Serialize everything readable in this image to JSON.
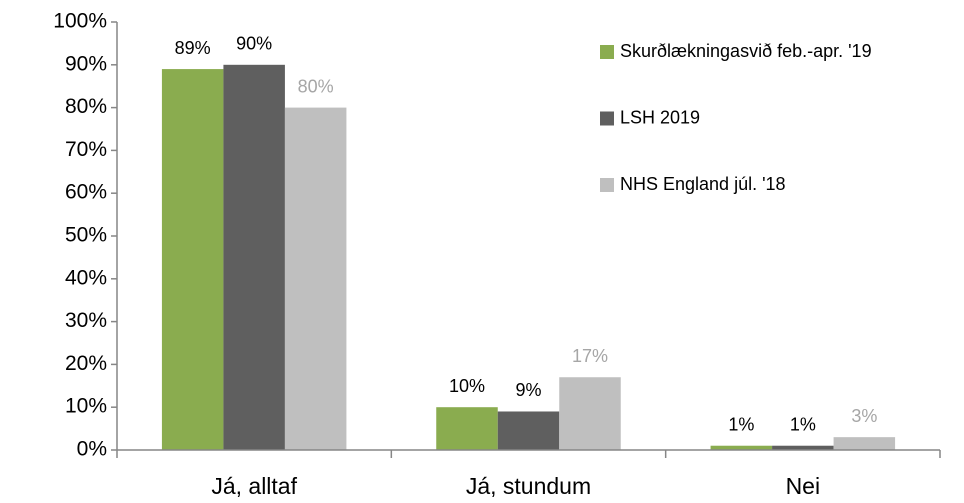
{
  "chart_data": {
    "type": "bar",
    "categories": [
      "Já, alltaf",
      "Já, stundum",
      "Nei"
    ],
    "series": [
      {
        "name": "Skurðlækningasvið feb.-apr. '19",
        "color": "#8aac4f",
        "label_color": "#000000",
        "values": [
          89,
          10,
          1
        ],
        "value_labels": [
          "89%",
          "10%",
          "1%"
        ]
      },
      {
        "name": "LSH 2019",
        "color": "#5f5f5f",
        "label_color": "#000000",
        "values": [
          90,
          9,
          1
        ],
        "value_labels": [
          "90%",
          "9%",
          "1%"
        ]
      },
      {
        "name": "NHS England júl. '18",
        "color": "#bfbfbf",
        "label_color": "#a6a6a6",
        "values": [
          80,
          17,
          3
        ],
        "value_labels": [
          "80%",
          "17%",
          "3%"
        ]
      }
    ],
    "ylim": [
      0,
      100
    ],
    "yticks": [
      {
        "value": 0,
        "label": "0%"
      },
      {
        "value": 10,
        "label": "10%"
      },
      {
        "value": 20,
        "label": "20%"
      },
      {
        "value": 30,
        "label": "30%"
      },
      {
        "value": 40,
        "label": "40%"
      },
      {
        "value": 50,
        "label": "50%"
      },
      {
        "value": 60,
        "label": "60%"
      },
      {
        "value": 70,
        "label": "70%"
      },
      {
        "value": 80,
        "label": "80%"
      },
      {
        "value": 90,
        "label": "90%"
      },
      {
        "value": 100,
        "label": "100%"
      }
    ],
    "grid": false,
    "legend": "right"
  }
}
